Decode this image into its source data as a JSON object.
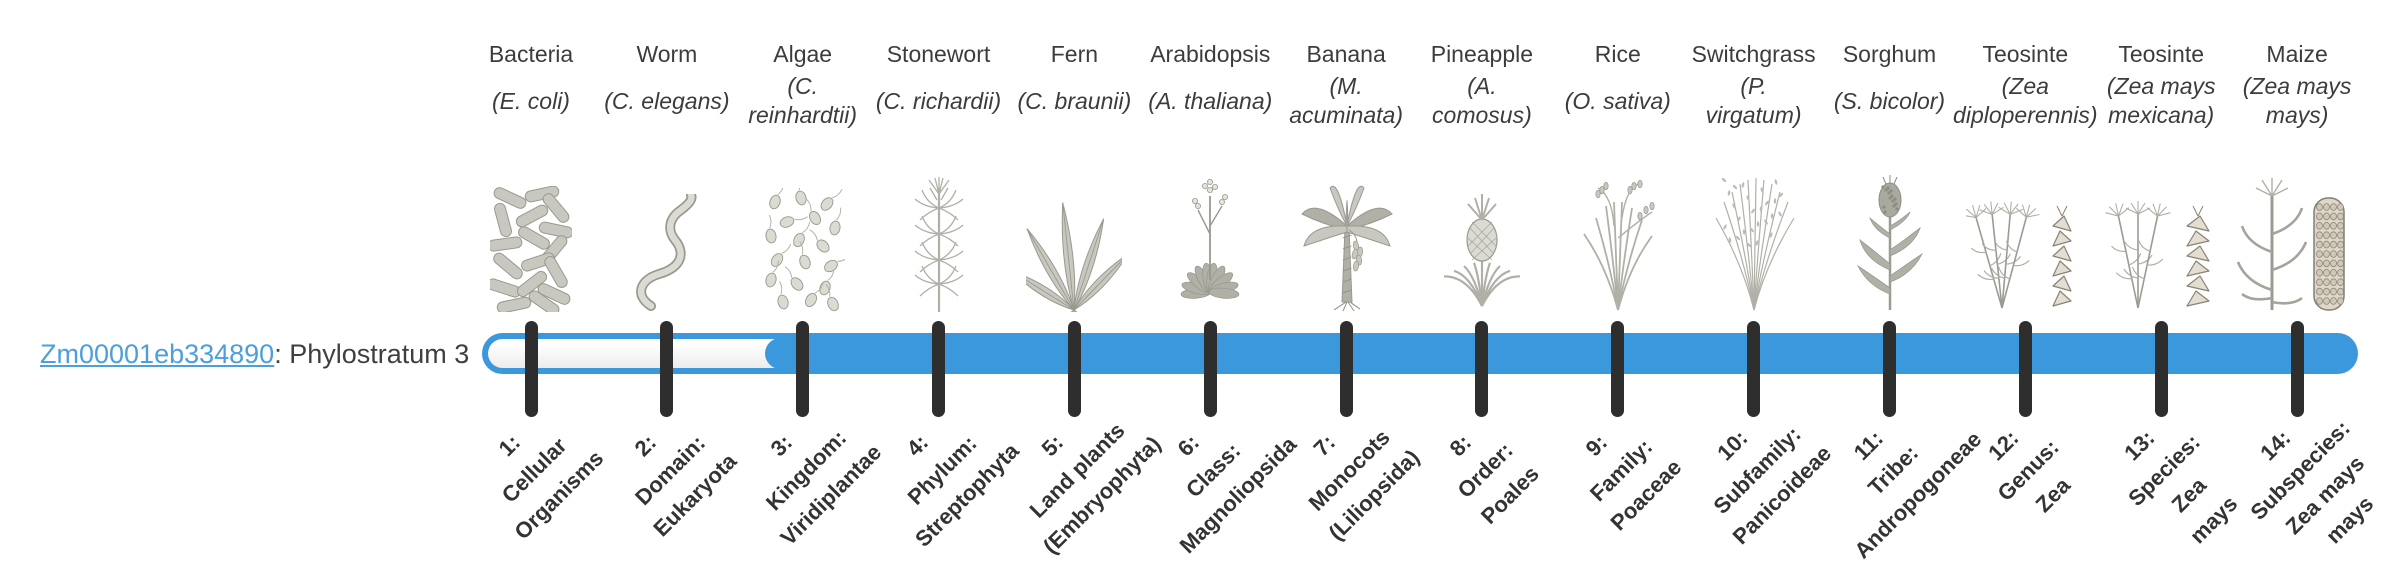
{
  "gene": {
    "id": "Zm00001eb334890",
    "suffix": ": Phylostratum 3"
  },
  "timeline": {
    "bar_color": "#3b98dc",
    "track_color": "#ececec",
    "tick_color": "#2e2e2e",
    "phylostratum": 3,
    "filled_from_stratum": 3,
    "total_strata": 14
  },
  "columns": [
    {
      "name": "Bacteria",
      "sci_lines": [
        "(E. coli)"
      ],
      "icon": "bacteria",
      "stratum_lines": [
        "1:",
        "Cellular",
        "Organisms"
      ]
    },
    {
      "name": "Worm",
      "sci_lines": [
        "(C. elegans)"
      ],
      "icon": "worm",
      "stratum_lines": [
        "2:",
        "Domain:",
        "Eukaryota"
      ]
    },
    {
      "name": "Algae",
      "sci_lines": [
        "(C.",
        "reinhardtii)"
      ],
      "icon": "algae",
      "stratum_lines": [
        "3:",
        "Kingdom:",
        "Viridiplantae"
      ]
    },
    {
      "name": "Stonewort",
      "sci_lines": [
        "(C. richardii)"
      ],
      "icon": "stonewort",
      "stratum_lines": [
        "4:",
        "Phylum:",
        "Streptophyta"
      ]
    },
    {
      "name": "Fern",
      "sci_lines": [
        "(C. braunii)"
      ],
      "icon": "fern",
      "stratum_lines": [
        "5:",
        "Land plants",
        "(Embryophyta)"
      ]
    },
    {
      "name": "Arabidopsis",
      "sci_lines": [
        "(A. thaliana)"
      ],
      "icon": "arabidopsis",
      "stratum_lines": [
        "6:",
        "Class:",
        "Magnoliopsida"
      ]
    },
    {
      "name": "Banana",
      "sci_lines": [
        "(M.",
        "acuminata)"
      ],
      "icon": "banana",
      "stratum_lines": [
        "7:",
        "Monocots",
        "(Liliopsida)"
      ]
    },
    {
      "name": "Pineapple",
      "sci_lines": [
        "(A.",
        "comosus)"
      ],
      "icon": "pineapple",
      "stratum_lines": [
        "8:",
        "Order:",
        "Poales"
      ]
    },
    {
      "name": "Rice",
      "sci_lines": [
        "(O. sativa)"
      ],
      "icon": "rice",
      "stratum_lines": [
        "9:",
        "Family:",
        "Poaceae"
      ]
    },
    {
      "name": "Switchgrass",
      "sci_lines": [
        "(P.",
        "virgatum)"
      ],
      "icon": "switchgrass",
      "stratum_lines": [
        "10:",
        "Subfamily:",
        "Panicoideae"
      ]
    },
    {
      "name": "Sorghum",
      "sci_lines": [
        "(S. bicolor)"
      ],
      "icon": "sorghum",
      "stratum_lines": [
        "11:",
        "Tribe:",
        "Andropogoneae"
      ]
    },
    {
      "name": "Teosinte",
      "sci_lines": [
        "(Zea",
        "diploperennis)"
      ],
      "icon": "teosinte-diplo",
      "stratum_lines": [
        "12:",
        "Genus:",
        "Zea"
      ]
    },
    {
      "name": "Teosinte",
      "sci_lines": [
        "(Zea mays",
        "mexicana)"
      ],
      "icon": "teosinte-mex",
      "stratum_lines": [
        "13:",
        "Species:",
        "Zea",
        "mays"
      ]
    },
    {
      "name": "Maize",
      "sci_lines": [
        "(Zea mays",
        "mays)"
      ],
      "icon": "maize",
      "stratum_lines": [
        "14:",
        "Subspecies:",
        "Zea mays",
        "mays"
      ]
    }
  ]
}
